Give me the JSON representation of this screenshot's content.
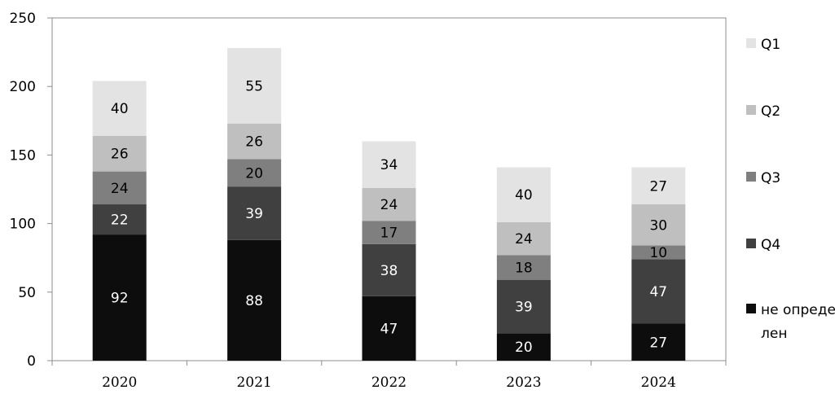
{
  "chart_data": {
    "type": "bar",
    "stacked": true,
    "categories": [
      "2020",
      "2021",
      "2022",
      "2023",
      "2024"
    ],
    "series": [
      {
        "name": "не определен",
        "color": "#0d0d0d",
        "label_color": "#ffffff",
        "values": [
          92,
          88,
          47,
          20,
          27
        ]
      },
      {
        "name": "Q4",
        "color": "#404040",
        "label_color": "#ffffff",
        "values": [
          22,
          39,
          38,
          39,
          47
        ]
      },
      {
        "name": "Q3",
        "color": "#7f7f7f",
        "label_color": "#000000",
        "values": [
          24,
          20,
          17,
          18,
          10
        ]
      },
      {
        "name": "Q2",
        "color": "#bfbfbf",
        "label_color": "#000000",
        "values": [
          26,
          26,
          24,
          24,
          30
        ]
      },
      {
        "name": "Q1",
        "color": "#e3e3e3",
        "label_color": "#000000",
        "values": [
          40,
          55,
          34,
          40,
          27
        ]
      }
    ],
    "y_ticks": [
      "0",
      "50",
      "100",
      "150",
      "200",
      "250"
    ],
    "ylim": [
      0,
      250
    ],
    "grid": false,
    "legend_position": "right"
  }
}
